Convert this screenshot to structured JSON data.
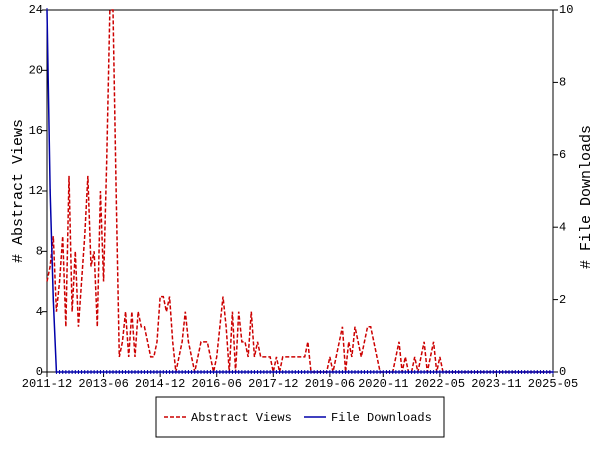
{
  "chart_data": {
    "type": "line",
    "x": [
      "2011-12",
      "2012-01",
      "2012-02",
      "2012-03",
      "2012-04",
      "2012-05",
      "2012-06",
      "2012-07",
      "2012-08",
      "2012-09",
      "2012-10",
      "2012-11",
      "2012-12",
      "2013-01",
      "2013-02",
      "2013-03",
      "2013-04",
      "2013-05",
      "2013-06",
      "2013-07",
      "2013-08",
      "2013-09",
      "2013-10",
      "2013-11",
      "2013-12",
      "2014-01",
      "2014-02",
      "2014-03",
      "2014-04",
      "2014-05",
      "2014-06",
      "2014-07",
      "2014-08",
      "2014-09",
      "2014-10",
      "2014-11",
      "2014-12",
      "2015-01",
      "2015-02",
      "2015-03",
      "2015-04",
      "2015-05",
      "2015-06",
      "2015-07",
      "2015-08",
      "2015-09",
      "2015-10",
      "2015-11",
      "2015-12",
      "2016-01",
      "2016-02",
      "2016-03",
      "2016-04",
      "2016-05",
      "2016-06",
      "2016-07",
      "2016-08",
      "2016-09",
      "2016-10",
      "2016-11",
      "2016-12",
      "2017-01",
      "2017-02",
      "2017-03",
      "2017-04",
      "2017-05",
      "2017-06",
      "2017-07",
      "2017-08",
      "2017-09",
      "2017-10",
      "2017-11",
      "2017-12",
      "2018-01",
      "2018-02",
      "2018-03",
      "2018-04",
      "2018-05",
      "2018-06",
      "2018-07",
      "2018-08",
      "2018-09",
      "2018-10",
      "2018-11",
      "2018-12",
      "2019-01",
      "2019-02",
      "2019-03",
      "2019-04",
      "2019-05",
      "2019-06",
      "2019-07",
      "2019-08",
      "2019-09",
      "2019-10",
      "2019-11",
      "2019-12",
      "2020-01",
      "2020-02",
      "2020-03",
      "2020-04",
      "2020-05",
      "2020-06",
      "2020-07",
      "2020-08",
      "2020-09",
      "2020-10",
      "2020-11",
      "2020-12",
      "2021-01",
      "2021-02",
      "2021-03",
      "2021-04",
      "2021-05",
      "2021-06",
      "2021-07",
      "2021-08",
      "2021-09",
      "2021-10",
      "2021-11",
      "2021-12",
      "2022-01",
      "2022-02",
      "2022-03",
      "2022-04",
      "2022-05",
      "2022-06",
      "2022-07",
      "2022-08",
      "2022-09",
      "2022-10",
      "2022-11",
      "2022-12",
      "2023-01",
      "2023-02",
      "2023-03",
      "2023-04",
      "2023-05",
      "2023-06",
      "2023-07",
      "2023-08",
      "2023-09",
      "2023-10",
      "2023-11",
      "2023-12",
      "2024-01",
      "2024-02",
      "2024-03",
      "2024-04",
      "2024-05",
      "2024-06",
      "2024-07",
      "2024-08",
      "2024-09",
      "2024-10",
      "2024-11",
      "2024-12",
      "2025-01",
      "2025-02",
      "2025-03",
      "2025-04",
      "2025-05"
    ],
    "series": [
      {
        "name": "Abstract Views",
        "color": "#cc0000",
        "dash": true,
        "axis": "y",
        "values": [
          6,
          7,
          9,
          4,
          6,
          9,
          3,
          13,
          4,
          8,
          3,
          6,
          9,
          13,
          7,
          8,
          3,
          12,
          6,
          14,
          24,
          24,
          12,
          1,
          2,
          4,
          1,
          4,
          1,
          4,
          3,
          3,
          2,
          1,
          1,
          2,
          5,
          5,
          4,
          5,
          2,
          0,
          1,
          2,
          4,
          2,
          1,
          0,
          1,
          2,
          2,
          2,
          1,
          0,
          1,
          3,
          5,
          3,
          0,
          4,
          0,
          4,
          2,
          2,
          1,
          4,
          1,
          2,
          1,
          1,
          1,
          1,
          0,
          1,
          0,
          1,
          1,
          1,
          1,
          1,
          1,
          1,
          1,
          2,
          0,
          0,
          0,
          0,
          0,
          0,
          1,
          0,
          1,
          2,
          3,
          0,
          2,
          1,
          3,
          2,
          1,
          2,
          3,
          3,
          2,
          1,
          0,
          0,
          0,
          0,
          0,
          1,
          2,
          0,
          1,
          0,
          0,
          1,
          0,
          1,
          2,
          0,
          1,
          2,
          0,
          1,
          0,
          0,
          0,
          0,
          0,
          0,
          0,
          0,
          0,
          0,
          0,
          0,
          0,
          0,
          0,
          0,
          0,
          0,
          0,
          0,
          0,
          0,
          0,
          0,
          0,
          0,
          0,
          0,
          0,
          0,
          0,
          0,
          0,
          0,
          0,
          0
        ]
      },
      {
        "name": "File Downloads",
        "color": "#0000aa",
        "dash": false,
        "axis": "y2",
        "values": [
          10,
          5,
          2,
          0,
          0,
          0,
          0,
          0,
          0,
          0,
          0,
          0,
          0,
          0,
          0,
          0,
          0,
          0,
          0,
          0,
          0,
          0,
          0,
          0,
          0,
          0,
          0,
          0,
          0,
          0,
          0,
          0,
          0,
          0,
          0,
          0,
          0,
          0,
          0,
          0,
          0,
          0,
          0,
          0,
          0,
          0,
          0,
          0,
          0,
          0,
          0,
          0,
          0,
          0,
          0,
          0,
          0,
          0,
          0,
          0,
          0,
          0,
          0,
          0,
          0,
          0,
          0,
          0,
          0,
          0,
          0,
          0,
          0,
          0,
          0,
          0,
          0,
          0,
          0,
          0,
          0,
          0,
          0,
          0,
          0,
          0,
          0,
          0,
          0,
          0,
          0,
          0,
          0,
          0,
          0,
          0,
          0,
          0,
          0,
          0,
          0,
          0,
          0,
          0,
          0,
          0,
          0,
          0,
          0,
          0,
          0,
          0,
          0,
          0,
          0,
          0,
          0,
          0,
          0,
          0,
          0,
          0,
          0,
          0,
          0,
          0,
          0,
          0,
          0,
          0,
          0,
          0,
          0,
          0,
          0,
          0,
          0,
          0,
          0,
          0,
          0,
          0,
          0,
          0,
          0,
          0,
          0,
          0,
          0,
          0,
          0,
          0,
          0,
          0,
          0,
          0,
          0,
          0,
          0,
          0,
          0,
          0
        ]
      }
    ],
    "ylabel": "# Abstract Views",
    "y2label": "# File Downloads",
    "xlim": [
      "2011-12",
      "2025-05"
    ],
    "xticks": [
      "2011-12",
      "2013-06",
      "2014-12",
      "2016-06",
      "2017-12",
      "2019-06",
      "2020-11",
      "2022-05",
      "2023-11",
      "2025-05"
    ],
    "ylim": [
      0,
      24
    ],
    "yticks": [
      0,
      4,
      8,
      12,
      16,
      20,
      24
    ],
    "y2lim": [
      0,
      10
    ],
    "y2ticks": [
      0,
      2,
      4,
      6,
      8,
      10
    ],
    "legend": "bottom"
  }
}
